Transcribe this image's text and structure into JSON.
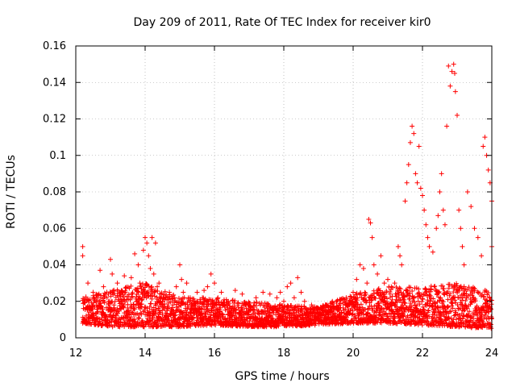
{
  "chart_data": {
    "type": "scatter",
    "title": "Day 209 of 2011, Rate Of TEC Index for receiver kir0",
    "xlabel": "GPS time / hours",
    "ylabel": "ROTI / TECUs",
    "xlim": [
      12,
      24
    ],
    "ylim": [
      0,
      0.16
    ],
    "x_ticks": [
      12,
      14,
      16,
      18,
      20,
      22,
      24
    ],
    "x_tick_labels": [
      "12",
      "14",
      "16",
      "18",
      "20",
      "22",
      "24"
    ],
    "y_ticks": [
      0,
      0.02,
      0.04,
      0.06,
      0.08,
      0.1,
      0.12,
      0.14,
      0.16
    ],
    "y_tick_labels": [
      "0",
      "0.02",
      "0.04",
      "0.06",
      "0.08",
      "0.1",
      "0.12",
      "0.14",
      "0.16"
    ],
    "grid": true,
    "marker": "+",
    "color": "#ff0000",
    "points": [
      [
        12.2,
        0.05
      ],
      [
        12.2,
        0.045
      ],
      [
        12.25,
        0.02
      ],
      [
        12.3,
        0.012
      ],
      [
        12.35,
        0.03
      ],
      [
        12.4,
        0.016
      ],
      [
        12.5,
        0.025
      ],
      [
        12.6,
        0.018
      ],
      [
        12.7,
        0.037
      ],
      [
        12.8,
        0.028
      ],
      [
        12.9,
        0.022
      ],
      [
        13.0,
        0.043
      ],
      [
        13.05,
        0.035
      ],
      [
        13.1,
        0.018
      ],
      [
        13.2,
        0.03
      ],
      [
        13.3,
        0.025
      ],
      [
        13.4,
        0.034
      ],
      [
        13.5,
        0.015
      ],
      [
        13.6,
        0.033
      ],
      [
        13.7,
        0.046
      ],
      [
        13.8,
        0.04
      ],
      [
        13.85,
        0.03
      ],
      [
        13.9,
        0.025
      ],
      [
        13.95,
        0.048
      ],
      [
        14.0,
        0.055
      ],
      [
        14.05,
        0.052
      ],
      [
        14.1,
        0.045
      ],
      [
        14.15,
        0.038
      ],
      [
        14.2,
        0.055
      ],
      [
        14.25,
        0.035
      ],
      [
        14.3,
        0.052
      ],
      [
        14.35,
        0.028
      ],
      [
        14.4,
        0.03
      ],
      [
        14.5,
        0.02
      ],
      [
        14.6,
        0.022
      ],
      [
        14.7,
        0.025
      ],
      [
        14.8,
        0.018
      ],
      [
        14.9,
        0.028
      ],
      [
        15.0,
        0.04
      ],
      [
        15.05,
        0.032
      ],
      [
        15.1,
        0.025
      ],
      [
        15.2,
        0.03
      ],
      [
        15.3,
        0.022
      ],
      [
        15.4,
        0.018
      ],
      [
        15.5,
        0.025
      ],
      [
        15.6,
        0.02
      ],
      [
        15.7,
        0.026
      ],
      [
        15.8,
        0.028
      ],
      [
        15.9,
        0.035
      ],
      [
        16.0,
        0.03
      ],
      [
        16.1,
        0.022
      ],
      [
        16.2,
        0.025
      ],
      [
        16.4,
        0.02
      ],
      [
        16.6,
        0.026
      ],
      [
        16.8,
        0.024
      ],
      [
        17.0,
        0.018
      ],
      [
        17.2,
        0.022
      ],
      [
        17.4,
        0.025
      ],
      [
        17.6,
        0.024
      ],
      [
        17.8,
        0.022
      ],
      [
        17.9,
        0.025
      ],
      [
        18.0,
        0.02
      ],
      [
        18.1,
        0.028
      ],
      [
        18.2,
        0.03
      ],
      [
        18.3,
        0.022
      ],
      [
        18.4,
        0.033
      ],
      [
        18.5,
        0.025
      ],
      [
        18.6,
        0.02
      ],
      [
        18.8,
        0.018
      ],
      [
        19.0,
        0.016
      ],
      [
        19.2,
        0.018
      ],
      [
        19.4,
        0.02
      ],
      [
        19.6,
        0.018
      ],
      [
        19.8,
        0.022
      ],
      [
        20.0,
        0.025
      ],
      [
        20.1,
        0.032
      ],
      [
        20.2,
        0.04
      ],
      [
        20.3,
        0.038
      ],
      [
        20.4,
        0.03
      ],
      [
        20.45,
        0.065
      ],
      [
        20.5,
        0.063
      ],
      [
        20.55,
        0.055
      ],
      [
        20.6,
        0.04
      ],
      [
        20.7,
        0.035
      ],
      [
        20.8,
        0.045
      ],
      [
        20.9,
        0.03
      ],
      [
        21.0,
        0.032
      ],
      [
        21.1,
        0.028
      ],
      [
        21.2,
        0.03
      ],
      [
        21.3,
        0.05
      ],
      [
        21.35,
        0.045
      ],
      [
        21.4,
        0.04
      ],
      [
        21.5,
        0.075
      ],
      [
        21.55,
        0.085
      ],
      [
        21.6,
        0.095
      ],
      [
        21.65,
        0.107
      ],
      [
        21.7,
        0.116
      ],
      [
        21.75,
        0.112
      ],
      [
        21.8,
        0.09
      ],
      [
        21.85,
        0.085
      ],
      [
        21.9,
        0.105
      ],
      [
        21.95,
        0.082
      ],
      [
        22.0,
        0.078
      ],
      [
        22.05,
        0.07
      ],
      [
        22.1,
        0.062
      ],
      [
        22.15,
        0.055
      ],
      [
        22.2,
        0.05
      ],
      [
        22.3,
        0.047
      ],
      [
        22.4,
        0.06
      ],
      [
        22.45,
        0.067
      ],
      [
        22.5,
        0.08
      ],
      [
        22.55,
        0.09
      ],
      [
        22.6,
        0.07
      ],
      [
        22.65,
        0.062
      ],
      [
        22.7,
        0.116
      ],
      [
        22.75,
        0.149
      ],
      [
        22.8,
        0.138
      ],
      [
        22.85,
        0.146
      ],
      [
        22.9,
        0.15
      ],
      [
        22.93,
        0.145
      ],
      [
        22.95,
        0.135
      ],
      [
        23.0,
        0.122
      ],
      [
        23.05,
        0.07
      ],
      [
        23.1,
        0.06
      ],
      [
        23.15,
        0.05
      ],
      [
        23.2,
        0.04
      ],
      [
        23.3,
        0.08
      ],
      [
        23.4,
        0.072
      ],
      [
        23.5,
        0.06
      ],
      [
        23.6,
        0.055
      ],
      [
        23.7,
        0.045
      ],
      [
        23.75,
        0.105
      ],
      [
        23.8,
        0.11
      ],
      [
        23.85,
        0.1
      ],
      [
        23.9,
        0.092
      ],
      [
        23.95,
        0.085
      ],
      [
        24.0,
        0.075
      ],
      [
        24.0,
        0.05
      ]
    ],
    "baseline_envelope": [
      [
        12.2,
        0.008,
        0.022
      ],
      [
        13.0,
        0.006,
        0.026
      ],
      [
        14.0,
        0.006,
        0.03
      ],
      [
        15.0,
        0.006,
        0.022
      ],
      [
        16.0,
        0.007,
        0.022
      ],
      [
        17.0,
        0.006,
        0.02
      ],
      [
        18.0,
        0.006,
        0.018
      ],
      [
        19.0,
        0.007,
        0.017
      ],
      [
        20.0,
        0.008,
        0.024
      ],
      [
        21.0,
        0.008,
        0.028
      ],
      [
        22.0,
        0.007,
        0.028
      ],
      [
        23.0,
        0.006,
        0.03
      ],
      [
        24.0,
        0.005,
        0.026
      ]
    ]
  }
}
